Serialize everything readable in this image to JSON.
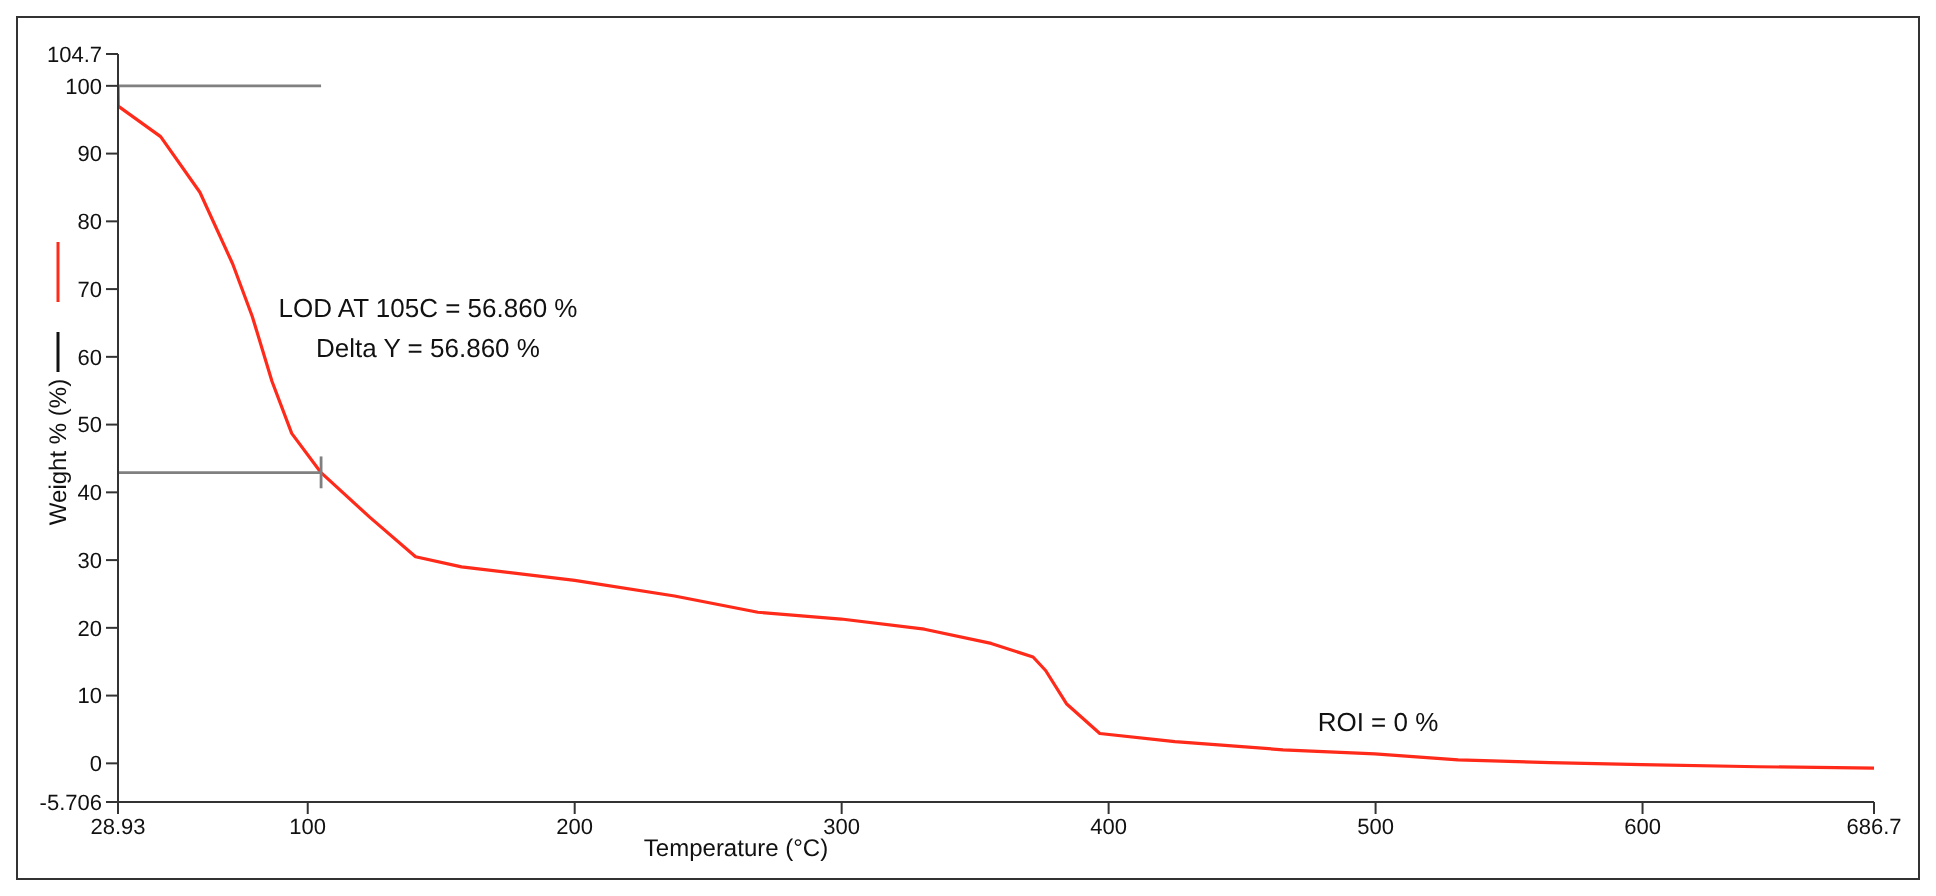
{
  "chart_data": {
    "type": "line",
    "xlabel": "Temperature (°C)",
    "ylabel": "Weight % (%)",
    "annotations": [
      "LOD AT 105C = 56.860 %",
      "Delta Y = 56.860 %",
      "ROI = 0 %"
    ],
    "xlim": [
      28.93,
      686.7
    ],
    "xticks": [
      28.93,
      100,
      200,
      300,
      400,
      500,
      600,
      686.7
    ],
    "ylim": [
      -5.706,
      104.7
    ],
    "yticks": [
      -5.706,
      0,
      10,
      20,
      30,
      40,
      50,
      60,
      70,
      80,
      90,
      100,
      104.7
    ],
    "grid": false,
    "marker": "none",
    "line_style": "solid",
    "series": [
      {
        "color": "#ff2a1a",
        "x": [
          28.93,
          29,
          44.9,
          59.6,
          71.9,
          79.2,
          86.6,
          94,
          105,
          123.3,
          140.4,
          157.6,
          200,
          237.4,
          268.6,
          299.8,
          331,
          356,
          371.7,
          376.4,
          384.2,
          396.7,
          424.8,
          465.3,
          499.7,
          530.9,
          565.4,
          599.7,
          643.4,
          686.7
        ],
        "values": [
          100,
          97,
          92.5,
          84.3,
          73.7,
          66,
          56.4,
          48.7,
          42.9,
          36.3,
          30.5,
          29,
          27,
          24.7,
          22.3,
          21.3,
          19.8,
          17.7,
          15.7,
          13.7,
          8.8,
          4.4,
          3.2,
          2,
          1.4,
          0.5,
          0.1,
          -0.2,
          -0.5,
          -0.7
        ]
      },
      {
        "color": "#808080",
        "x": [
          28.93,
          105
        ],
        "values": [
          100,
          100
        ]
      },
      {
        "color": "#808080",
        "x": [
          28.93,
          105
        ],
        "values": [
          42.9,
          42.9
        ]
      },
      {
        "color": "#808080",
        "x": [
          105,
          105
        ],
        "values": [
          40.6,
          45.3
        ]
      }
    ]
  }
}
